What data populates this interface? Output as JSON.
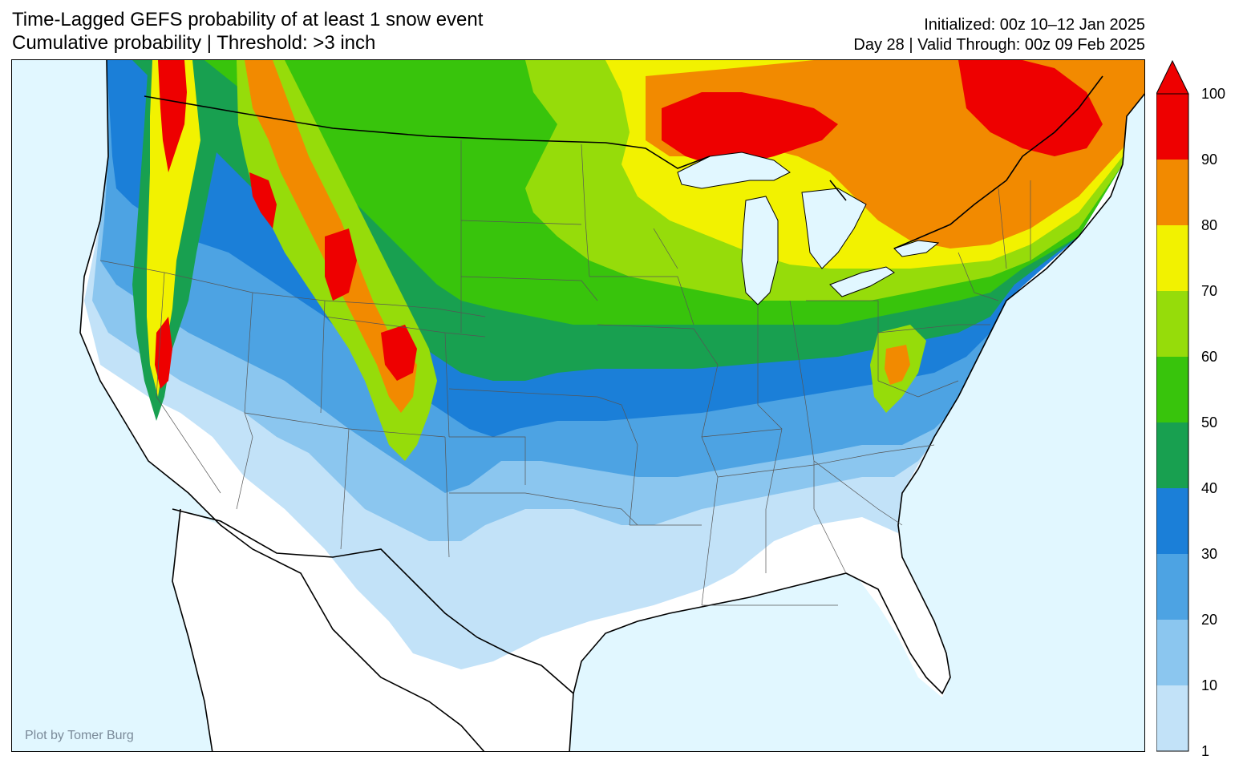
{
  "title": {
    "line1": "Time-Lagged GEFS probability of at least 1 snow event",
    "line2": "Cumulative probability | Threshold: >3 inch"
  },
  "meta": {
    "initialized": "Initialized: 00z 10–12 Jan 2025",
    "valid": "Day 28 | Valid Through: 00z 09 Feb 2025"
  },
  "credit": "Plot by Tomer Burg",
  "colors": {
    "ocean": "#e1f7ff",
    "land": "#ffffff",
    "border": "#000000"
  },
  "legend": {
    "levels": [
      {
        "label": "1",
        "color": "#c2e2f8"
      },
      {
        "label": "10",
        "color": "#8bc6ef"
      },
      {
        "label": "20",
        "color": "#4da3e3"
      },
      {
        "label": "30",
        "color": "#1b7fd8"
      },
      {
        "label": "40",
        "color": "#18a050"
      },
      {
        "label": "50",
        "color": "#38c40c"
      },
      {
        "label": "60",
        "color": "#96dc0a"
      },
      {
        "label": "70",
        "color": "#f2f200"
      },
      {
        "label": "80",
        "color": "#f28a00"
      },
      {
        "label": "90",
        "color": "#ee0000"
      }
    ],
    "top_label": "100",
    "extend": "max"
  }
}
